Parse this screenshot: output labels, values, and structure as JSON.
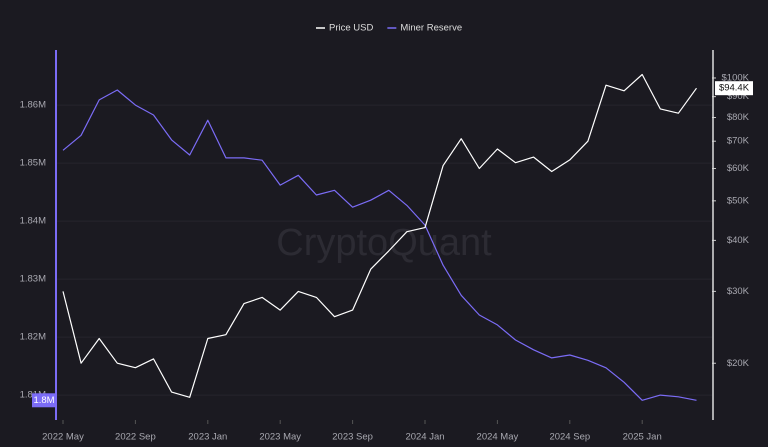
{
  "chart_data": {
    "type": "line",
    "watermark": "CryptoQuant",
    "x": [
      "2022 May",
      "2022 Jun",
      "2022 Jul",
      "2022 Aug",
      "2022 Sep",
      "2022 Oct",
      "2022 Nov",
      "2022 Dec",
      "2023 Jan",
      "2023 Feb",
      "2023 Mar",
      "2023 Apr",
      "2023 May",
      "2023 Jun",
      "2023 Jul",
      "2023 Aug",
      "2023 Sep",
      "2023 Oct",
      "2023 Nov",
      "2023 Dec",
      "2024 Jan",
      "2024 Feb",
      "2024 Mar",
      "2024 Apr",
      "2024 May",
      "2024 Jun",
      "2024 Jul",
      "2024 Aug",
      "2024 Sep",
      "2024 Oct",
      "2024 Nov",
      "2024 Dec",
      "2025 Jan",
      "2025 Feb",
      "2025 Mar",
      "2025 Apr"
    ],
    "xticks": [
      "2022 May",
      "2022 Sep",
      "2023 Jan",
      "2023 May",
      "2023 Sep",
      "2024 Jan",
      "2024 May",
      "2024 Sep",
      "2025 Jan"
    ],
    "series": [
      {
        "name": "Price USD",
        "color": "#ffffff",
        "axis": "y2",
        "values": [
          30000,
          20000,
          23000,
          20000,
          19500,
          20500,
          17000,
          16500,
          23000,
          23500,
          28000,
          29000,
          27000,
          30000,
          29000,
          26000,
          27000,
          34000,
          37700,
          42000,
          43000,
          61000,
          71000,
          60000,
          67000,
          62000,
          64000,
          59000,
          63000,
          70000,
          96000,
          93000,
          102000,
          84000,
          82000,
          94400
        ],
        "value_labels": [
          null,
          null,
          null,
          null,
          null,
          null,
          null,
          null,
          null,
          null,
          null,
          null,
          null,
          null,
          null,
          null,
          null,
          null,
          null,
          null,
          null,
          null,
          null,
          null,
          null,
          null,
          null,
          null,
          null,
          null,
          null,
          null,
          null,
          null,
          null,
          "$94.4K"
        ]
      },
      {
        "name": "Miner Reserve",
        "color": "#7b6cf6",
        "axis": "y",
        "values": [
          1852200,
          1854800,
          1860900,
          1862600,
          1860000,
          1858300,
          1854000,
          1851400,
          1857400,
          1850900,
          1850900,
          1850500,
          1846200,
          1847900,
          1844500,
          1845300,
          1842400,
          1843600,
          1845300,
          1842700,
          1839300,
          1832400,
          1827200,
          1823800,
          1822100,
          1819500,
          1817800,
          1816400,
          1816900,
          1816000,
          1814700,
          1812200,
          1809100,
          1810000,
          1809700,
          1809100
        ],
        "value_labels": [
          null,
          null,
          null,
          null,
          null,
          null,
          null,
          null,
          null,
          null,
          null,
          null,
          null,
          null,
          null,
          null,
          null,
          null,
          null,
          null,
          null,
          null,
          null,
          null,
          null,
          null,
          null,
          null,
          null,
          null,
          null,
          null,
          null,
          null,
          null,
          "1.8M"
        ]
      }
    ],
    "ylim": [
      1805700,
      1869500
    ],
    "yticks": [
      {
        "value": 1810000,
        "label": "1.81M"
      },
      {
        "value": 1820000,
        "label": "1.82M"
      },
      {
        "value": 1830000,
        "label": "1.83M"
      },
      {
        "value": 1840000,
        "label": "1.84M"
      },
      {
        "value": 1850000,
        "label": "1.85M"
      },
      {
        "value": 1860000,
        "label": "1.86M"
      }
    ],
    "y2lim": [
      14520,
      117100
    ],
    "y2log": true,
    "y2ticks": [
      {
        "value": 20000,
        "label": "$20K"
      },
      {
        "value": 30000,
        "label": "$30K"
      },
      {
        "value": 40000,
        "label": "$40K"
      },
      {
        "value": 50000,
        "label": "$50K"
      },
      {
        "value": 60000,
        "label": "$60K"
      },
      {
        "value": 70000,
        "label": "$70K"
      },
      {
        "value": 80000,
        "label": "$80K"
      },
      {
        "value": 90000,
        "label": "$90K"
      },
      {
        "value": 100000,
        "label": "$100K"
      }
    ],
    "grid": true
  }
}
